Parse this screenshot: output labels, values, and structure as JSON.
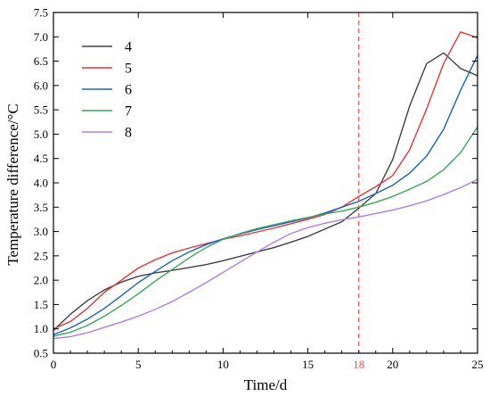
{
  "chart_data": {
    "type": "line",
    "title": "",
    "xlabel": "Time/d",
    "ylabel": "Temperature difference/°C",
    "xlim": [
      0,
      25
    ],
    "ylim": [
      0.5,
      7.5
    ],
    "xticks": [
      "0",
      "5",
      "10",
      "15",
      "20",
      "25"
    ],
    "yticks": [
      "0.5",
      "1.0",
      "1.5",
      "2.0",
      "2.5",
      "3.0",
      "3.5",
      "4.0",
      "4.5",
      "5.0",
      "5.5",
      "6.0",
      "6.5",
      "7.0",
      "7.5"
    ],
    "grid": false,
    "legend": "top-left",
    "annotations": [
      {
        "type": "vline",
        "x": 18,
        "label": "18",
        "color": "#ff4a4a"
      }
    ],
    "x": [
      0,
      1,
      2,
      3,
      4,
      5,
      6,
      7,
      8,
      9,
      10,
      11,
      12,
      13,
      14,
      15,
      16,
      17,
      18,
      19,
      20,
      21,
      22,
      23,
      24,
      25
    ],
    "series": [
      {
        "name": "4",
        "color": "#404040",
        "values": [
          0.97,
          1.3,
          1.58,
          1.8,
          1.96,
          2.08,
          2.15,
          2.2,
          2.26,
          2.32,
          2.4,
          2.49,
          2.58,
          2.67,
          2.78,
          2.9,
          3.05,
          3.2,
          3.48,
          3.78,
          4.48,
          5.58,
          6.45,
          6.67,
          6.35,
          6.2
        ]
      },
      {
        "name": "5",
        "color": "#ee3333",
        "values": [
          1.0,
          1.15,
          1.42,
          1.75,
          2.0,
          2.25,
          2.42,
          2.56,
          2.66,
          2.75,
          2.84,
          2.91,
          2.99,
          3.07,
          3.16,
          3.25,
          3.35,
          3.5,
          3.72,
          3.92,
          4.15,
          4.68,
          5.52,
          6.45,
          7.1,
          6.98
        ]
      },
      {
        "name": "6",
        "color": "#1560d0",
        "values": [
          0.88,
          1.02,
          1.2,
          1.42,
          1.68,
          1.95,
          2.18,
          2.4,
          2.58,
          2.73,
          2.85,
          2.95,
          3.04,
          3.12,
          3.2,
          3.28,
          3.38,
          3.5,
          3.62,
          3.78,
          3.95,
          4.2,
          4.55,
          5.1,
          5.9,
          6.62
        ]
      },
      {
        "name": "7",
        "color": "#33aa55",
        "values": [
          0.85,
          0.93,
          1.07,
          1.26,
          1.48,
          1.72,
          1.98,
          2.22,
          2.46,
          2.67,
          2.84,
          2.96,
          3.06,
          3.14,
          3.22,
          3.29,
          3.36,
          3.42,
          3.5,
          3.6,
          3.72,
          3.87,
          4.03,
          4.27,
          4.62,
          5.15
        ]
      },
      {
        "name": "8",
        "color": "#b07ee6",
        "values": [
          0.8,
          0.84,
          0.92,
          1.03,
          1.14,
          1.26,
          1.4,
          1.56,
          1.75,
          1.95,
          2.16,
          2.37,
          2.58,
          2.78,
          2.96,
          3.08,
          3.17,
          3.24,
          3.3,
          3.37,
          3.44,
          3.53,
          3.63,
          3.76,
          3.9,
          4.07
        ]
      }
    ]
  }
}
